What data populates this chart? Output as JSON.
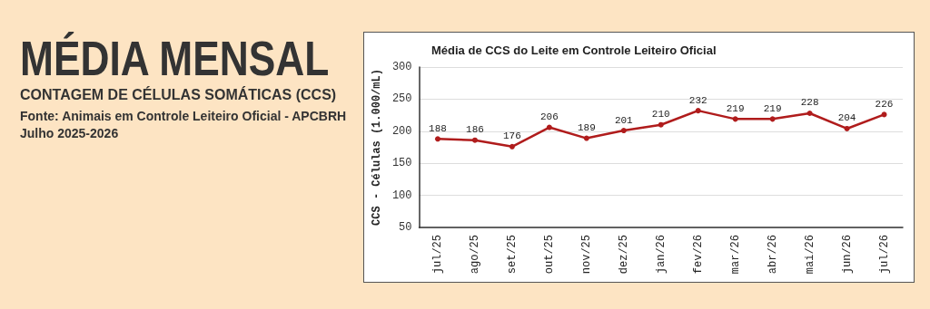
{
  "chart_data": {
    "type": "line",
    "title": "MÉDIA MENSAL",
    "subtitle": "CONTAGEM DE CÉLULAS SOMÁTICAS (CCS)",
    "annotations": [
      "Fonte: Animais em Controle Leiteiro Oficial - APCBRH",
      "Julho 2025-2026",
      "Média de CCS do Leite em Controle Leiteiro Oficial"
    ],
    "ylabel": "CCS - Células (1.000/mL)",
    "categories": [
      "jul/25",
      "ago/25",
      "set/25",
      "out/25",
      "nov/25",
      "dez/25",
      "jan/26",
      "fev/26",
      "mar/26",
      "abr/26",
      "mai/26",
      "jun/26",
      "jul/26"
    ],
    "series": [
      {
        "color": "#b01c1c",
        "values": [
          188,
          186,
          176,
          206,
          189,
          201,
          210,
          232,
          219,
          219,
          228,
          204,
          226
        ]
      }
    ],
    "ylim": [
      50,
      300
    ],
    "yticks": [
      50,
      100,
      150,
      200,
      250,
      300
    ],
    "grid": "y",
    "marker": "circle",
    "line_style": "solid",
    "data_labels": true
  }
}
